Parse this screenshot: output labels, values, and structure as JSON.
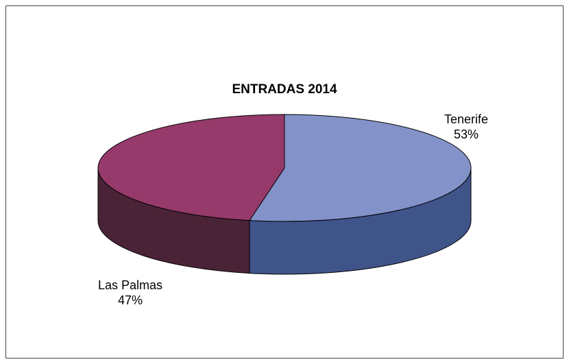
{
  "chart_data": {
    "type": "pie",
    "title": "ENTRADAS 2014",
    "categories": [
      "Tenerife",
      "Las Palmas"
    ],
    "values": [
      53,
      47
    ],
    "value_labels": [
      "53%",
      "47%"
    ],
    "colors": [
      "#8393c9",
      "#953a6a"
    ],
    "side_colors": [
      "#3f5489",
      "#4b2336"
    ]
  }
}
